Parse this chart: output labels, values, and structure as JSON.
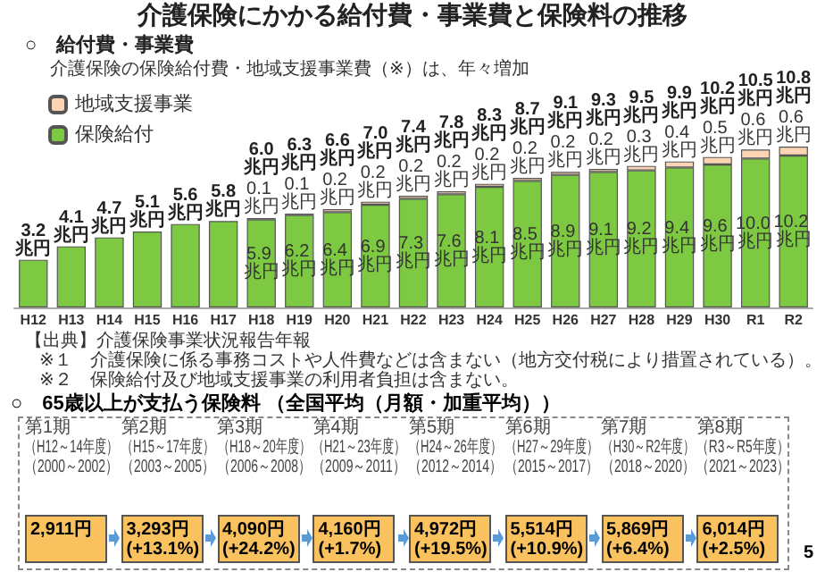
{
  "chart_data": [
    {
      "type": "bar",
      "title": "介護保険にかかる給付費・事業費と保険料の推移",
      "subtitle": "○　給付費・事業費",
      "categories": [
        "H12",
        "H13",
        "H14",
        "H15",
        "H16",
        "H17",
        "H18",
        "H19",
        "H20",
        "H21",
        "H22",
        "H23",
        "H24",
        "H25",
        "H26",
        "H27",
        "H28",
        "H29",
        "H30",
        "R1",
        "R2"
      ],
      "stacked": true,
      "legend": "top left",
      "series": [
        {
          "name": "保険給付",
          "color": "#7dc942",
          "values": [
            3.2,
            4.1,
            4.7,
            5.1,
            5.6,
            5.8,
            5.9,
            6.2,
            6.4,
            6.9,
            7.3,
            7.6,
            8.1,
            8.5,
            8.9,
            9.1,
            9.2,
            9.4,
            9.6,
            10.0,
            10.2
          ],
          "value_labels": [
            null,
            null,
            null,
            null,
            null,
            null,
            "5.9 兆円",
            "6.2 兆円",
            "6.4 兆円",
            "6.9 兆円",
            "7.3 兆円",
            "7.6 兆円",
            "8.1 兆円",
            "8.5 兆円",
            "8.9 兆円",
            "9.1 兆円",
            "9.2 兆円",
            "9.4 兆円",
            "9.6 兆円",
            "10.0 兆円",
            "10.2 兆円"
          ]
        },
        {
          "name": "地域支援事業",
          "color": "#fbd4b4",
          "values": [
            null,
            null,
            null,
            null,
            null,
            null,
            0.1,
            0.1,
            0.2,
            0.2,
            0.2,
            0.2,
            0.2,
            0.2,
            0.2,
            0.2,
            0.3,
            0.4,
            0.5,
            0.6,
            0.6
          ],
          "value_labels": [
            null,
            null,
            null,
            null,
            null,
            null,
            "0.1 兆円",
            "0.1 兆円",
            "0.2 兆円",
            "0.2 兆円",
            "0.2 兆円",
            "0.2 兆円",
            "0.2 兆円",
            "0.2 兆円",
            "0.2 兆円",
            "0.2 兆円",
            "0.3 兆円",
            "0.4 兆円",
            "0.5 兆円",
            "0.6 兆円",
            "0.6 兆円"
          ]
        }
      ],
      "totals": [
        "3.2兆円",
        "4.1兆円",
        "4.7兆円",
        "5.1兆円",
        "5.6兆円",
        "5.8兆円",
        "6.0兆円",
        "6.3兆円",
        "6.6兆円",
        "7.0兆円",
        "7.4兆円",
        "7.8兆円",
        "8.3兆円",
        "8.7兆円",
        "9.1兆円",
        "9.3兆円",
        "9.5兆円",
        "9.9兆円",
        "10.2兆円",
        "10.5兆円",
        "10.8兆円"
      ],
      "annotations": [
        "介護保険の保険給付費・地域支援事業費（※）は、年々増加",
        "【出典】介護保険事業状況報告年報",
        "※１　介護保険に係る事務コストや人件費などは含まない（地方交付税により措置されている）。",
        "※２　保険給付及び地域支援事業の利用者負担は含まない。"
      ]
    },
    {
      "type": "other",
      "title": "○　65歳以上が支払う保険料 （全国平均（月額・加重平均））",
      "color": "#f9c25e",
      "annotations": [
        "第1期（H12～14年度）（2000～2002）",
        "第2期（H15～17年度）（2003～2005）",
        "第3期（H18～20年度）（2006～2008）",
        "第4期（H21～23年度）（2009～2011）",
        "第5期（H24～26年度）（2012～2014）",
        "第6期（H27～29年度）（2015～2017）",
        "第7期（H30～R2年度）（2018～2020）",
        "第8期（R3～R5年度）（2021～2023）",
        "2,911円",
        "3,293円(+13.1%)",
        "4,090円(+24.2%)",
        "4,160円(+1.7%)",
        "4,972円(+19.5%)",
        "5,514円(+10.9%)",
        "5,869円(+6.4%)",
        "6,014円(+2.5%)",
        "5"
      ]
    }
  ]
}
